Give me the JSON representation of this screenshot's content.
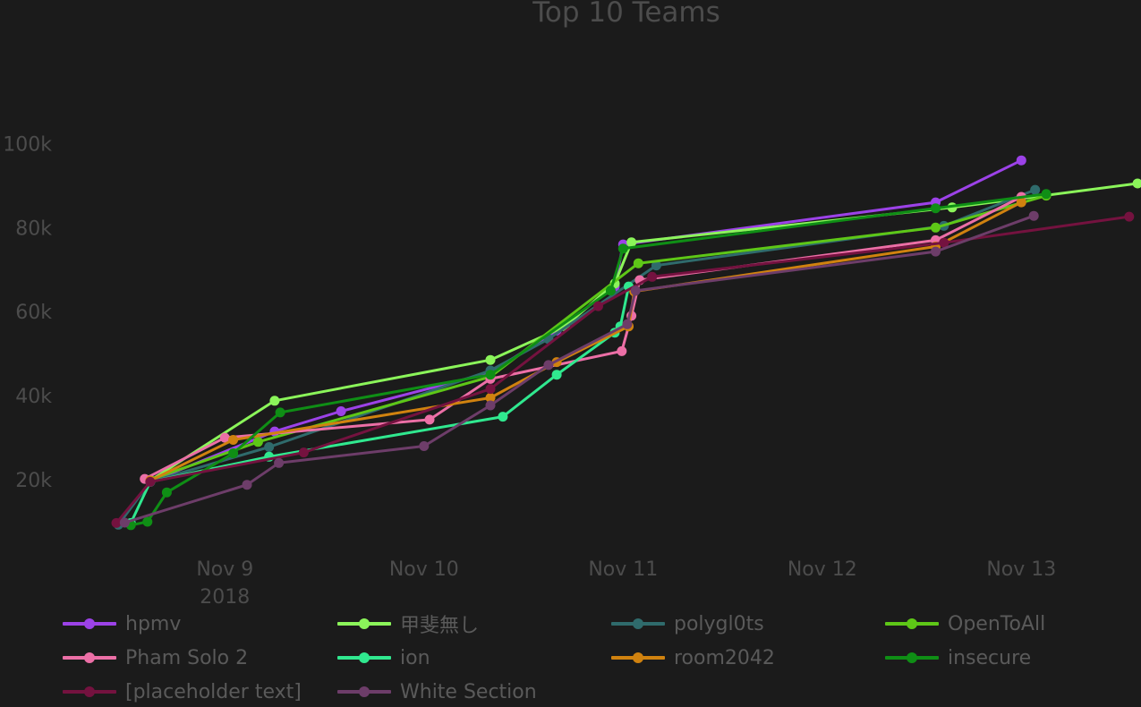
{
  "chart_data": {
    "type": "line",
    "title": "Top 10 Teams",
    "xlabel": "",
    "ylabel": "",
    "x_axis": {
      "type": "date",
      "range": [
        "2018-11-08 10:55",
        "2018-11-13 13:40"
      ],
      "ticks": [
        {
          "date": "2018-11-09 00:00",
          "label": "Nov 9",
          "sublabel": "2018"
        },
        {
          "date": "2018-11-10 00:00",
          "label": "Nov 10",
          "sublabel": ""
        },
        {
          "date": "2018-11-11 00:00",
          "label": "Nov 11",
          "sublabel": ""
        },
        {
          "date": "2018-11-12 00:00",
          "label": "Nov 12",
          "sublabel": ""
        },
        {
          "date": "2018-11-13 00:00",
          "label": "Nov 13",
          "sublabel": ""
        }
      ]
    },
    "y_axis": {
      "range": [
        0,
        125000
      ],
      "ticks": [
        {
          "value": 20000,
          "label": "20k"
        },
        {
          "value": 40000,
          "label": "40k"
        },
        {
          "value": 60000,
          "label": "60k"
        },
        {
          "value": 80000,
          "label": "80k"
        },
        {
          "value": 100000,
          "label": "100k"
        }
      ],
      "grid": false
    },
    "legend_position": "bottom",
    "series": [
      {
        "name": "hpmv",
        "color": "#9c42e8",
        "points": [
          [
            "2018-11-08 15:00",
            19500
          ],
          [
            "2018-11-09 06:00",
            31500
          ],
          [
            "2018-11-09 14:00",
            36300
          ],
          [
            "2018-11-10 08:00",
            45500
          ],
          [
            "2018-11-10 16:00",
            55500
          ],
          [
            "2018-11-10 23:00",
            66000
          ],
          [
            "2018-11-11 00:00",
            76000
          ],
          [
            "2018-11-12 13:40",
            86000
          ],
          [
            "2018-11-13 00:00",
            96000
          ]
        ]
      },
      {
        "name": "甲斐無し",
        "color": "#8bf55a",
        "points": [
          [
            "2018-11-08 15:00",
            19800
          ],
          [
            "2018-11-09 06:00",
            38800
          ],
          [
            "2018-11-10 08:00",
            48500
          ],
          [
            "2018-11-10 17:00",
            56500
          ],
          [
            "2018-11-10 23:00",
            66700
          ],
          [
            "2018-11-11 01:00",
            76500
          ],
          [
            "2018-11-12 15:40",
            84800
          ],
          [
            "2018-11-13 14:00",
            90500
          ]
        ]
      },
      {
        "name": "polygl0ts",
        "color": "#2f6b6c",
        "points": [
          [
            "2018-11-08 11:10",
            9300
          ],
          [
            "2018-11-08 15:00",
            19500
          ],
          [
            "2018-11-09 05:20",
            27800
          ],
          [
            "2018-11-10 08:00",
            46000
          ],
          [
            "2018-11-10 15:00",
            53500
          ],
          [
            "2018-11-11 04:00",
            71000
          ],
          [
            "2018-11-12 14:40",
            80400
          ],
          [
            "2018-11-13 01:40",
            89000
          ]
        ]
      },
      {
        "name": "OpenToAll",
        "color": "#5ec717",
        "points": [
          [
            "2018-11-08 15:00",
            20000
          ],
          [
            "2018-11-09 04:00",
            29000
          ],
          [
            "2018-11-10 08:00",
            44500
          ],
          [
            "2018-11-11 01:50",
            71500
          ],
          [
            "2018-11-12 13:40",
            80000
          ],
          [
            "2018-11-13 03:00",
            87600
          ]
        ]
      },
      {
        "name": "Pham Solo 2",
        "color": "#ec6fa6",
        "points": [
          [
            "2018-11-08 14:20",
            20200
          ],
          [
            "2018-11-09 00:00",
            30000
          ],
          [
            "2018-11-10 00:40",
            34300
          ],
          [
            "2018-11-10 08:00",
            44000
          ],
          [
            "2018-11-10 23:50",
            50600
          ],
          [
            "2018-11-11 01:00",
            59000
          ],
          [
            "2018-11-11 02:00",
            67500
          ],
          [
            "2018-11-12 13:40",
            77000
          ],
          [
            "2018-11-13 00:00",
            87300
          ]
        ]
      },
      {
        "name": "ion",
        "color": "#30e88f",
        "points": [
          [
            "2018-11-08 12:40",
            9700
          ],
          [
            "2018-11-08 15:00",
            19500
          ],
          [
            "2018-11-09 05:20",
            25500
          ],
          [
            "2018-11-10 09:30",
            35000
          ],
          [
            "2018-11-10 16:00",
            45000
          ],
          [
            "2018-11-10 23:00",
            55000
          ],
          [
            "2018-11-10 23:40",
            56500
          ],
          [
            "2018-11-11 00:40",
            66000
          ]
        ]
      },
      {
        "name": "room2042",
        "color": "#d0820f",
        "points": [
          [
            "2018-11-08 15:00",
            19800
          ],
          [
            "2018-11-09 01:00",
            29500
          ],
          [
            "2018-11-10 08:00",
            39500
          ],
          [
            "2018-11-10 16:00",
            48000
          ],
          [
            "2018-11-11 00:40",
            56500
          ],
          [
            "2018-11-11 01:20",
            64800
          ],
          [
            "2018-11-12 13:40",
            75500
          ],
          [
            "2018-11-13 00:00",
            86000
          ]
        ]
      },
      {
        "name": "insecure",
        "color": "#0f8e15",
        "points": [
          [
            "2018-11-08 12:40",
            9200
          ],
          [
            "2018-11-08 14:40",
            10000
          ],
          [
            "2018-11-08 17:00",
            17000
          ],
          [
            "2018-11-09 01:00",
            26300
          ],
          [
            "2018-11-09 06:40",
            36000
          ],
          [
            "2018-11-10 08:00",
            45000
          ],
          [
            "2018-11-10 22:30",
            65000
          ],
          [
            "2018-11-11 00:00",
            75000
          ],
          [
            "2018-11-12 13:40",
            84600
          ],
          [
            "2018-11-13 03:00",
            88000
          ]
        ]
      },
      {
        "name": "[placeholder text]",
        "color": "#74123f",
        "points": [
          [
            "2018-11-08 10:55",
            9700
          ],
          [
            "2018-11-08 15:00",
            19500
          ],
          [
            "2018-11-09 09:30",
            26500
          ],
          [
            "2018-11-10 08:00",
            41600
          ],
          [
            "2018-11-10 21:00",
            61300
          ],
          [
            "2018-11-11 03:30",
            68300
          ],
          [
            "2018-11-12 14:40",
            76400
          ],
          [
            "2018-11-13 13:00",
            82600
          ]
        ]
      },
      {
        "name": "White Section",
        "color": "#6d3d69",
        "points": [
          [
            "2018-11-08 11:55",
            9800
          ],
          [
            "2018-11-09 02:40",
            18800
          ],
          [
            "2018-11-09 06:30",
            24000
          ],
          [
            "2018-11-10 00:00",
            28000
          ],
          [
            "2018-11-10 08:00",
            37700
          ],
          [
            "2018-11-10 15:00",
            47300
          ],
          [
            "2018-11-11 00:30",
            57000
          ],
          [
            "2018-11-11 01:30",
            65000
          ],
          [
            "2018-11-12 13:40",
            74300
          ],
          [
            "2018-11-13 01:30",
            82800
          ]
        ]
      }
    ]
  }
}
